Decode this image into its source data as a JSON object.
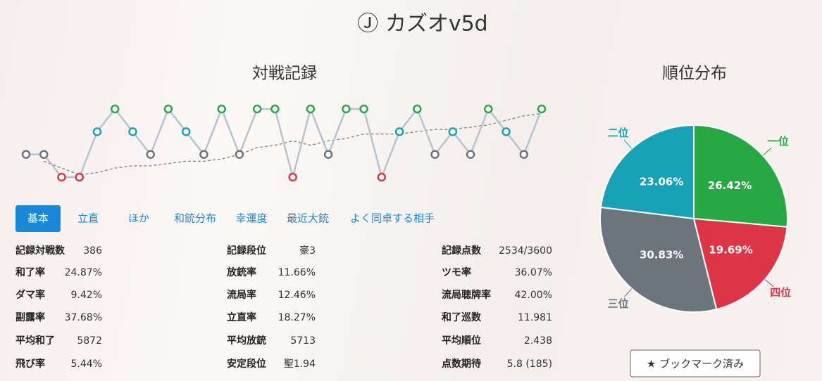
{
  "header": {
    "title": "Ⓙ カズオv5d"
  },
  "chart_data": [
    {
      "type": "line",
      "title": "対戦記録",
      "ylim": [
        4,
        1
      ],
      "point_colors": [
        "#28a745",
        "#17a2b8",
        "#6c757d",
        "#dc3545"
      ],
      "series": [
        {
          "color": "#b7c2d0",
          "values": [
            3,
            3,
            4,
            4,
            2,
            1,
            2,
            3,
            1,
            2,
            3,
            1,
            3,
            1,
            1,
            4,
            1,
            3,
            1,
            1,
            4,
            2,
            1,
            3,
            2,
            3,
            1,
            2,
            3,
            1
          ]
        },
        {
          "color": "#8a8f96",
          "values": [
            null,
            3.3,
            3.6,
            3.9,
            3.8,
            3.6,
            3.5,
            3.5,
            3.4,
            3.3,
            3.3,
            3.2,
            3.0,
            2.7,
            2.6,
            2.4,
            2.6,
            2.4,
            2.3,
            2.1,
            2.1,
            2.1,
            2.0,
            1.9,
            1.9,
            1.8,
            1.7,
            1.5,
            1.3,
            1.2
          ]
        }
      ]
    },
    {
      "type": "pie",
      "title": "順位分布",
      "categories": [
        "一位",
        "四位",
        "三位",
        "二位"
      ],
      "values": [
        26.42,
        19.69,
        30.83,
        23.06
      ],
      "value_labels": [
        "26.42%",
        "19.69%",
        "30.83%",
        "23.06%"
      ],
      "colors": [
        "#28a745",
        "#dc3545",
        "#6c757d",
        "#17a2b8"
      ]
    }
  ],
  "tabs": [
    "基本",
    "立直",
    "ほか",
    "和銃分布",
    "幸運度",
    "最近大銃",
    "よく同卓する相手"
  ],
  "stats": [
    [
      [
        "記録対戦数",
        "386"
      ],
      [
        "和了率",
        "24.87%"
      ],
      [
        "ダマ率",
        "9.42%"
      ],
      [
        "副露率",
        "37.68%"
      ],
      [
        "平均和了",
        "5872"
      ],
      [
        "飛び率",
        "5.44%"
      ]
    ],
    [
      [
        "記録段位",
        "豪3"
      ],
      [
        "放銃率",
        "11.66%"
      ],
      [
        "流局率",
        "12.46%"
      ],
      [
        "立直率",
        "18.27%"
      ],
      [
        "平均放銃",
        "5713"
      ],
      [
        "安定段位",
        "聖1.94"
      ]
    ],
    [
      [
        "記録点数",
        "2534/3600"
      ],
      [
        "ツモ率",
        "36.07%"
      ],
      [
        "流局聴牌率",
        "42.00%"
      ],
      [
        "和了巡数",
        "11.981"
      ],
      [
        "平均順位",
        "2.438"
      ],
      [
        "点数期待",
        "5.8 (185)"
      ]
    ]
  ],
  "bookmark": "★ ブックマーク済み"
}
